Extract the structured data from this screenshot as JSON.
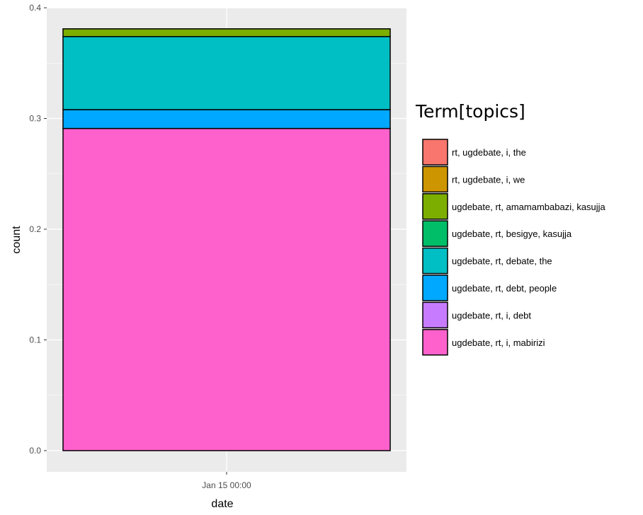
{
  "chart_data": {
    "type": "bar",
    "stacked": true,
    "xlabel": "date",
    "ylabel": "count",
    "categories": [
      "Jan 15 00:00"
    ],
    "ylim": [
      0,
      0.4
    ],
    "y_ticks": [
      "0.0",
      "0.1",
      "0.2",
      "0.3",
      "0.4"
    ],
    "series": [
      {
        "name": "ugdebate, rt, i, mabirizi",
        "color": "#FF61CC",
        "values": [
          0.291
        ]
      },
      {
        "name": "ugdebate, rt, debt, people",
        "color": "#00A9FF",
        "values": [
          0.017
        ]
      },
      {
        "name": "ugdebate, rt, debate, the",
        "color": "#00BFC4",
        "values": [
          0.066
        ]
      },
      {
        "name": "ugdebate, rt, amamambabazi, kasujja",
        "color": "#7CAE00",
        "values": [
          0.007
        ]
      }
    ],
    "grid": true,
    "legend": {
      "title": "Term[topics]",
      "position": "right",
      "items": [
        {
          "label": "rt, ugdebate, i, the",
          "color": "#F8766D"
        },
        {
          "label": "rt, ugdebate, i, we",
          "color": "#CD9600"
        },
        {
          "label": "ugdebate, rt, amamambabazi, kasujja",
          "color": "#7CAE00"
        },
        {
          "label": "ugdebate, rt, besigye, kasujja",
          "color": "#00BE67"
        },
        {
          "label": "ugdebate, rt, debate, the",
          "color": "#00BFC4"
        },
        {
          "label": "ugdebate, rt, debt, people",
          "color": "#00A9FF"
        },
        {
          "label": "ugdebate, rt, i, debt",
          "color": "#C77CFF"
        },
        {
          "label": "ugdebate, rt, i, mabirizi",
          "color": "#FF61CC"
        }
      ]
    }
  }
}
